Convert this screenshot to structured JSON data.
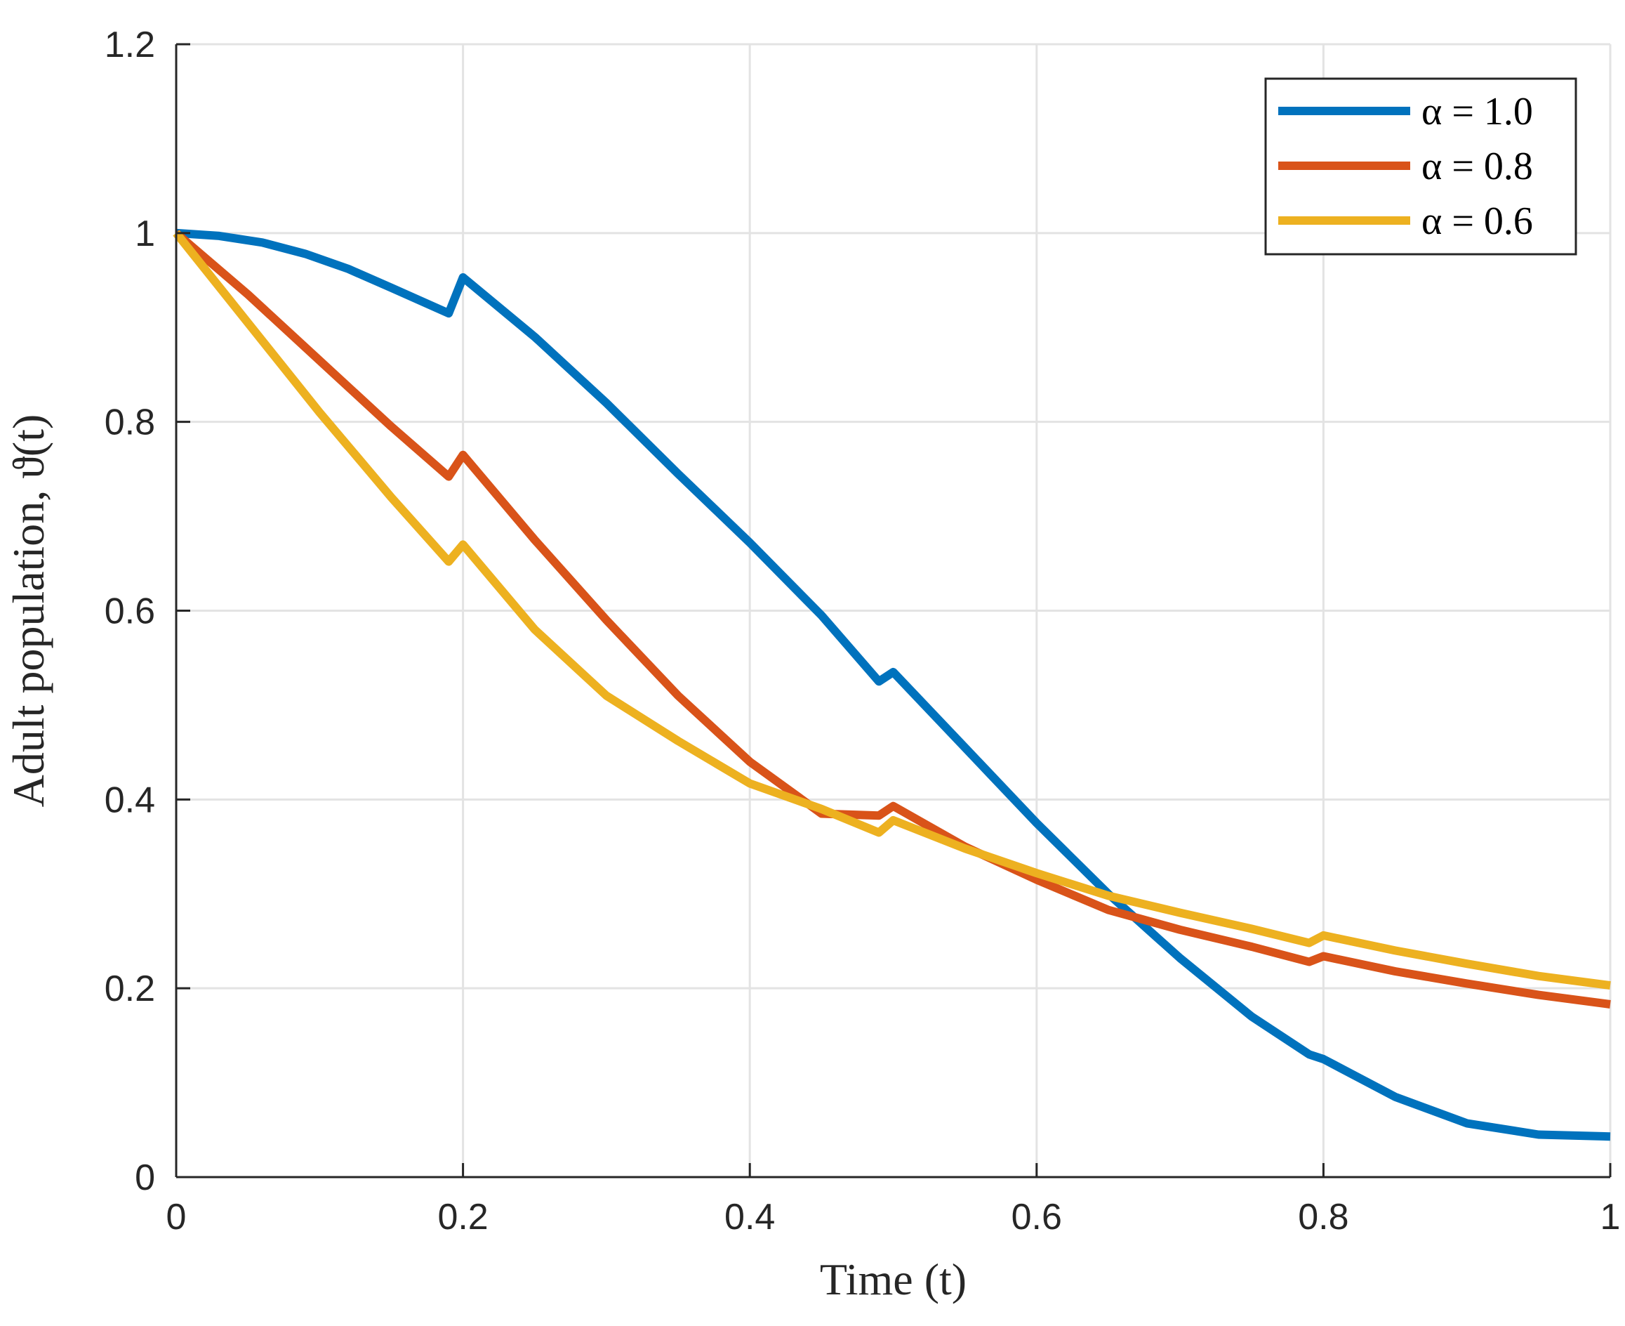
{
  "chart_data": {
    "type": "line",
    "title": "",
    "xlabel": "Time (t)",
    "ylabel": "Adult population, ϑ(t)",
    "xlim": [
      0,
      1
    ],
    "ylim": [
      0,
      1.2
    ],
    "xticks": [
      0,
      0.2,
      0.4,
      0.6,
      0.8,
      1
    ],
    "xtick_labels": [
      "0",
      "0.2",
      "0.4",
      "0.6",
      "0.8",
      "1"
    ],
    "yticks": [
      0,
      0.2,
      0.4,
      0.6,
      0.8,
      1,
      1.2
    ],
    "ytick_labels": [
      "0",
      "0.2",
      "0.4",
      "0.6",
      "0.8",
      "1",
      "1.2"
    ],
    "grid": true,
    "legend_position": "top-right",
    "series": [
      {
        "name": "α = 1.0",
        "color": "#0072BD",
        "x": [
          0,
          0.03,
          0.06,
          0.09,
          0.12,
          0.15,
          0.19,
          0.2,
          0.25,
          0.3,
          0.35,
          0.4,
          0.45,
          0.49,
          0.5,
          0.55,
          0.6,
          0.65,
          0.7,
          0.75,
          0.79,
          0.8,
          0.85,
          0.9,
          0.95,
          1.0
        ],
        "y": [
          1.0,
          0.997,
          0.99,
          0.978,
          0.962,
          0.942,
          0.915,
          0.953,
          0.89,
          0.82,
          0.745,
          0.672,
          0.595,
          0.525,
          0.535,
          0.455,
          0.375,
          0.3,
          0.232,
          0.17,
          0.13,
          0.125,
          0.085,
          0.057,
          0.045,
          0.043
        ]
      },
      {
        "name": "α = 0.8",
        "color": "#D95319",
        "x": [
          0,
          0.05,
          0.1,
          0.15,
          0.19,
          0.2,
          0.25,
          0.3,
          0.35,
          0.4,
          0.45,
          0.49,
          0.5,
          0.55,
          0.6,
          0.65,
          0.7,
          0.75,
          0.79,
          0.8,
          0.85,
          0.9,
          0.95,
          1.0
        ],
        "y": [
          1.0,
          0.935,
          0.865,
          0.795,
          0.742,
          0.765,
          0.675,
          0.59,
          0.51,
          0.44,
          0.385,
          0.383,
          0.393,
          0.35,
          0.315,
          0.283,
          0.262,
          0.244,
          0.228,
          0.234,
          0.218,
          0.205,
          0.193,
          0.183
        ]
      },
      {
        "name": "α = 0.6",
        "color": "#EDB120",
        "x": [
          0,
          0.05,
          0.1,
          0.15,
          0.19,
          0.2,
          0.25,
          0.3,
          0.35,
          0.4,
          0.45,
          0.49,
          0.5,
          0.55,
          0.6,
          0.65,
          0.7,
          0.75,
          0.79,
          0.8,
          0.85,
          0.9,
          0.95,
          1.0
        ],
        "y": [
          1.0,
          0.905,
          0.81,
          0.72,
          0.652,
          0.67,
          0.58,
          0.51,
          0.462,
          0.417,
          0.39,
          0.365,
          0.378,
          0.348,
          0.322,
          0.298,
          0.28,
          0.263,
          0.248,
          0.256,
          0.24,
          0.226,
          0.213,
          0.203
        ]
      }
    ]
  }
}
